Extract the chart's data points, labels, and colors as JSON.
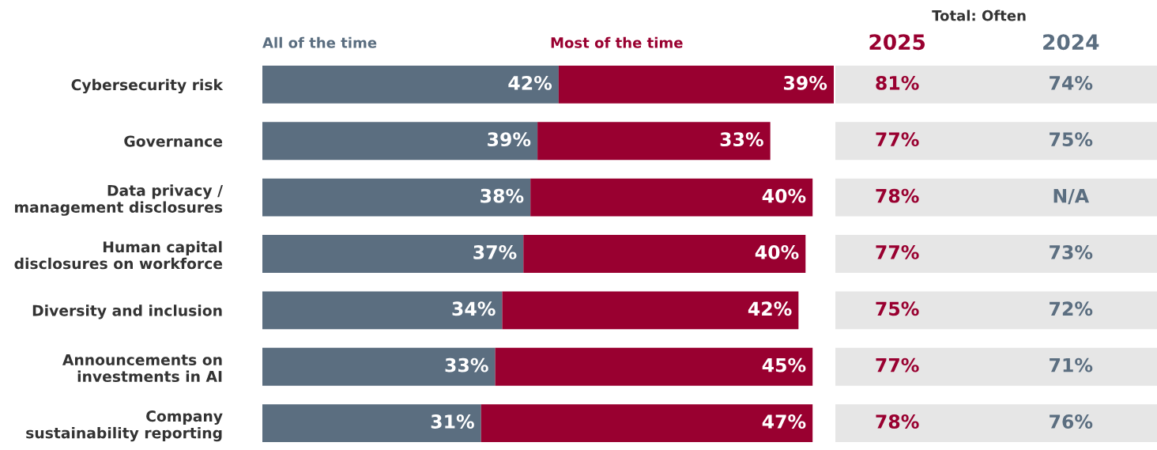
{
  "chart_data": {
    "type": "bar",
    "orientation": "horizontal",
    "stacked": true,
    "tick_labels": "y",
    "grid": false,
    "legend": false,
    "categories": [
      "Cybersecurity risk",
      "Governance",
      "Data privacy /\nmanagement disclosures",
      "Human capital\ndisclosures on workforce",
      "Diversity and inclusion",
      "Announcements on\ninvestments in AI",
      "Company\nsustainability reporting"
    ],
    "series": [
      {
        "name": "All of the time",
        "color": "#5b6e80",
        "values": [
          42,
          39,
          38,
          37,
          34,
          33,
          31
        ],
        "value_labels": [
          "42%",
          "39%",
          "38%",
          "37%",
          "34%",
          "33%",
          "31%"
        ]
      },
      {
        "name": "Most of the time",
        "color": "#990030",
        "values": [
          39,
          33,
          40,
          40,
          42,
          45,
          47
        ],
        "value_labels": [
          "39%",
          "33%",
          "40%",
          "40%",
          "42%",
          "45%",
          "47%"
        ]
      }
    ],
    "annotations": [
      "Total: Often",
      "2025",
      "2024",
      "81%",
      "77%",
      "78%",
      "77%",
      "75%",
      "77%",
      "78%",
      "74%",
      "75%",
      "N/A",
      "73%",
      "72%",
      "71%",
      "76%"
    ]
  }
}
